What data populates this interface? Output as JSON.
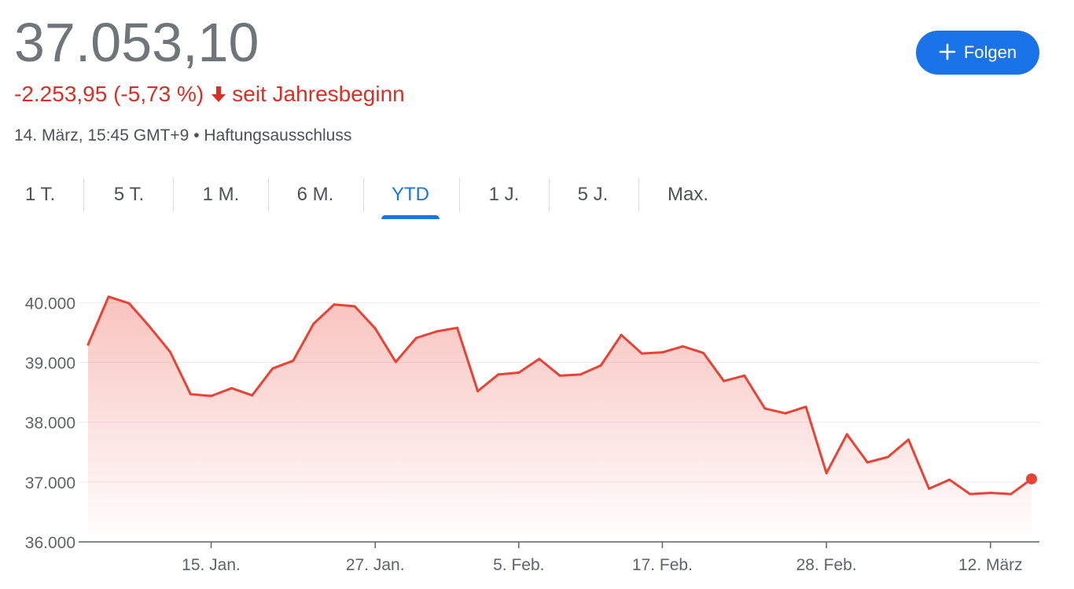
{
  "quote": {
    "price": "37.053,10",
    "change": "-2.253,95 (-5,73 %)",
    "change_period": "seit Jahresbeginn",
    "timestamp": "14. März, 15:45 GMT+9",
    "separator": "•",
    "disclaimer": "Haftungsausschluss",
    "negative_color": "#d93025"
  },
  "follow_button": {
    "label": "Folgen",
    "icon": "plus-icon"
  },
  "tabs": [
    {
      "label": "1 T.",
      "active": false
    },
    {
      "label": "5 T.",
      "active": false
    },
    {
      "label": "1 M.",
      "active": false
    },
    {
      "label": "6 M.",
      "active": false
    },
    {
      "label": "YTD",
      "active": true
    },
    {
      "label": "1 J.",
      "active": false
    },
    {
      "label": "5 J.",
      "active": false
    },
    {
      "label": "Max.",
      "active": false
    }
  ],
  "accent_color": "#1a73e8",
  "chart_data": {
    "type": "area",
    "title": "",
    "xlabel": "",
    "ylabel": "",
    "ylim": [
      36000,
      40400
    ],
    "yticks": [
      {
        "value": 36000,
        "label": "36.000"
      },
      {
        "value": 37000,
        "label": "37.000"
      },
      {
        "value": 38000,
        "label": "38.000"
      },
      {
        "value": 39000,
        "label": "39.000"
      },
      {
        "value": 40000,
        "label": "40.000"
      }
    ],
    "xticks": [
      {
        "index": 6,
        "label": "15. Jan."
      },
      {
        "index": 14,
        "label": "27. Jan."
      },
      {
        "index": 21,
        "label": "5. Feb."
      },
      {
        "index": 28,
        "label": "17. Feb."
      },
      {
        "index": 36,
        "label": "28. Feb."
      },
      {
        "index": 44,
        "label": "12. März"
      }
    ],
    "grid": true,
    "line_color": "#ea4335",
    "series": [
      {
        "values": [
          39300,
          40100,
          39990,
          39600,
          39180,
          38470,
          38440,
          38570,
          38450,
          38900,
          39030,
          39650,
          39970,
          39940,
          39570,
          39010,
          39410,
          39520,
          39580,
          38520,
          38800,
          38830,
          39060,
          38780,
          38800,
          38950,
          39460,
          39150,
          39170,
          39270,
          39160,
          38690,
          38780,
          38230,
          38150,
          38260,
          37150,
          37800,
          37330,
          37420,
          37710,
          36890,
          37040,
          36800,
          36820,
          36800,
          37053
        ]
      }
    ]
  }
}
